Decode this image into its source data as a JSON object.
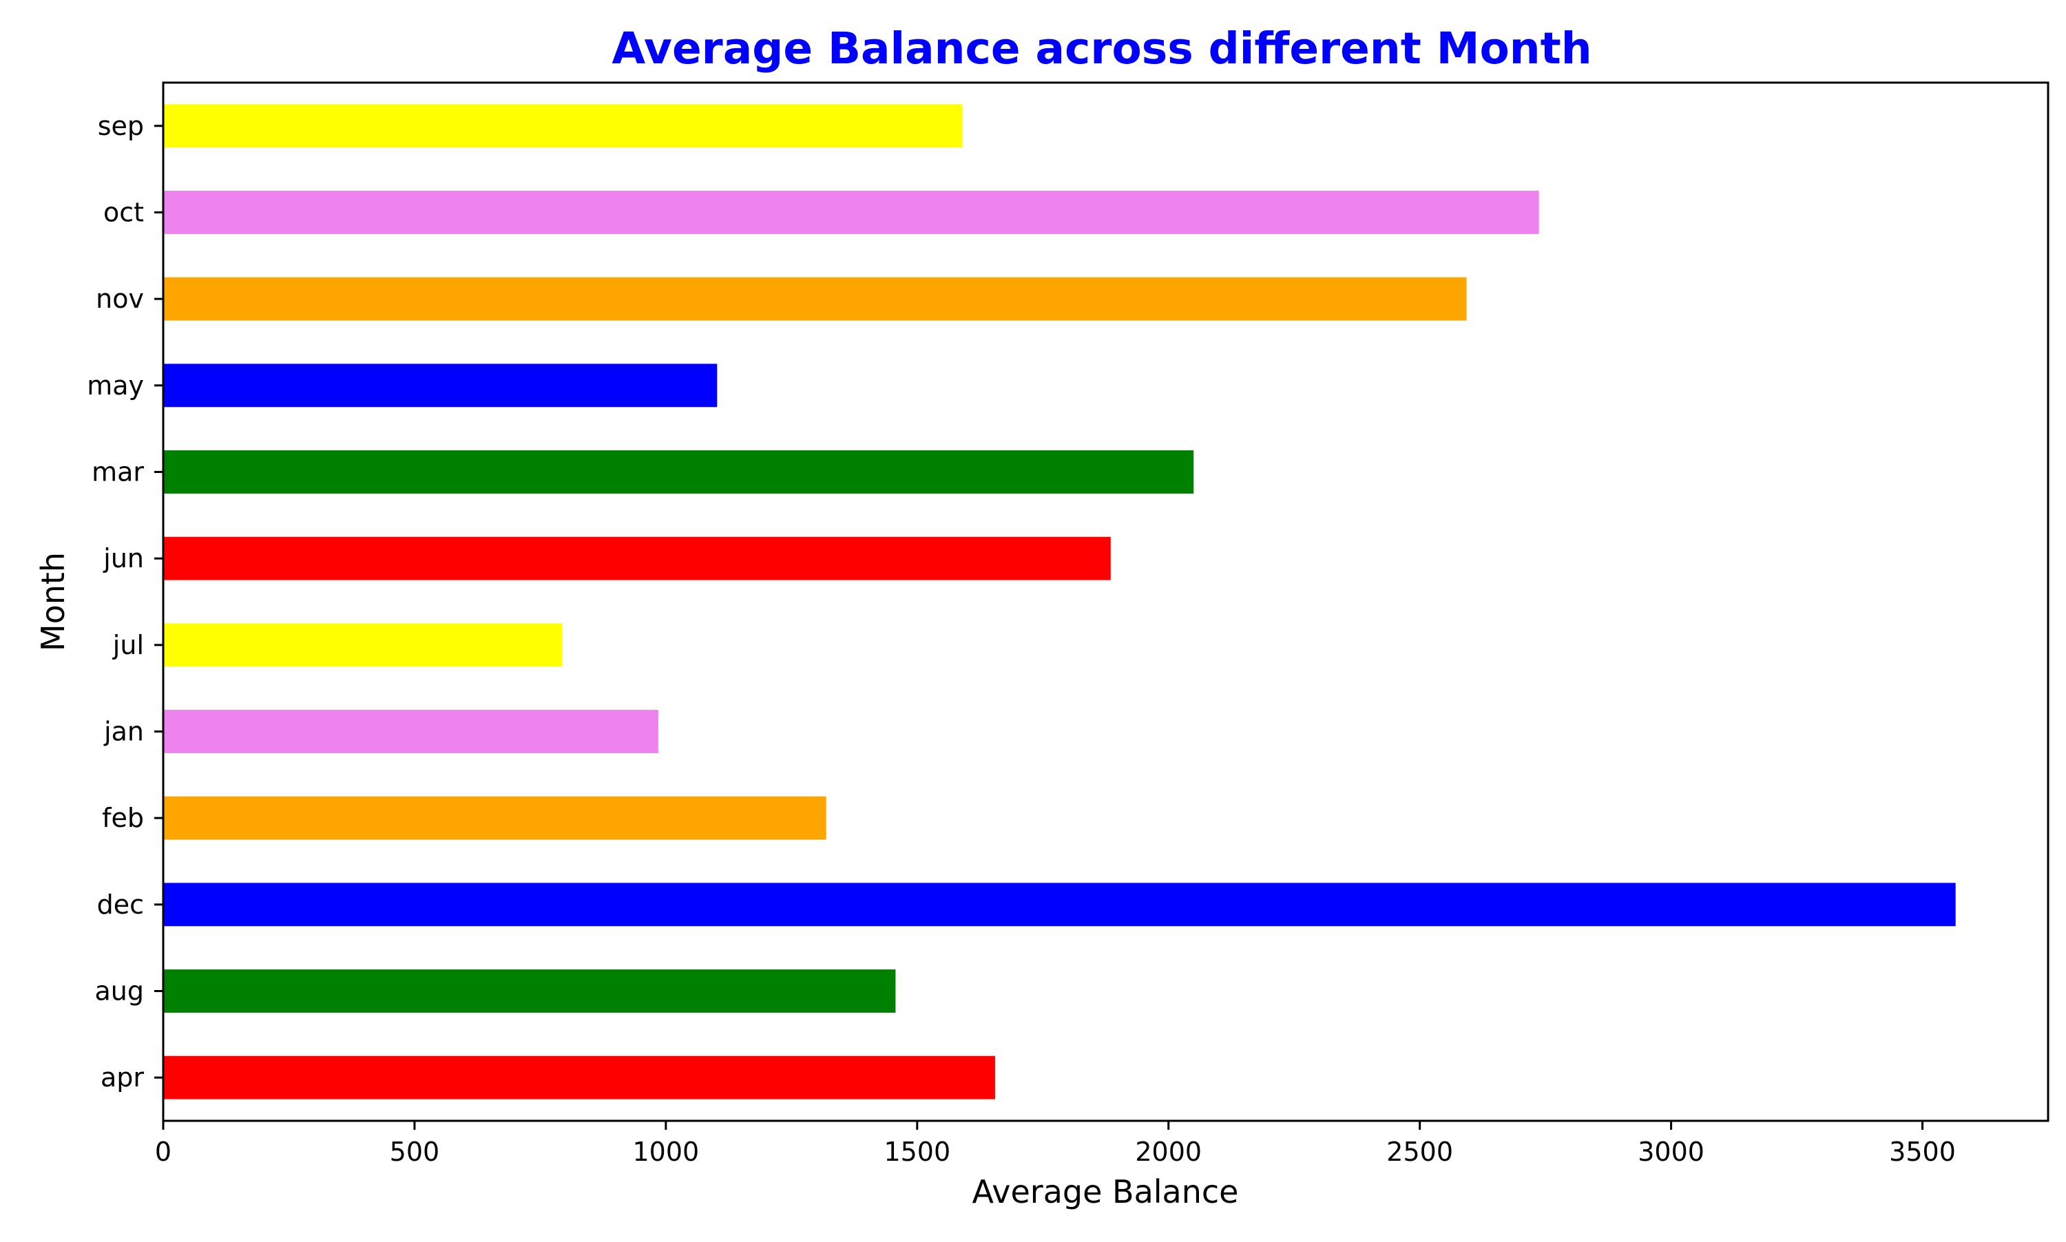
{
  "chart_data": {
    "type": "bar",
    "orientation": "horizontal",
    "title": "Average Balance across different Month",
    "xlabel": "Average Balance",
    "ylabel": "Month",
    "categories": [
      "apr",
      "aug",
      "dec",
      "feb",
      "jan",
      "jul",
      "jun",
      "mar",
      "may",
      "nov",
      "oct",
      "sep"
    ],
    "values": [
      1655,
      1457,
      3566,
      1319,
      985,
      794,
      1885,
      2050,
      1102,
      2593,
      2737,
      1590
    ],
    "bar_colors": [
      "#ff0000",
      "#008000",
      "#0000ff",
      "#ffa500",
      "#ee82ee",
      "#ffff00",
      "#ff0000",
      "#008000",
      "#0000ff",
      "#ffa500",
      "#ee82ee",
      "#ffff00"
    ],
    "xlim": [
      0,
      3750
    ],
    "xticks": [
      0,
      500,
      1000,
      1500,
      2000,
      2500,
      3000,
      3500
    ],
    "grid": false,
    "legend": "none",
    "title_color": "#0000ff"
  }
}
